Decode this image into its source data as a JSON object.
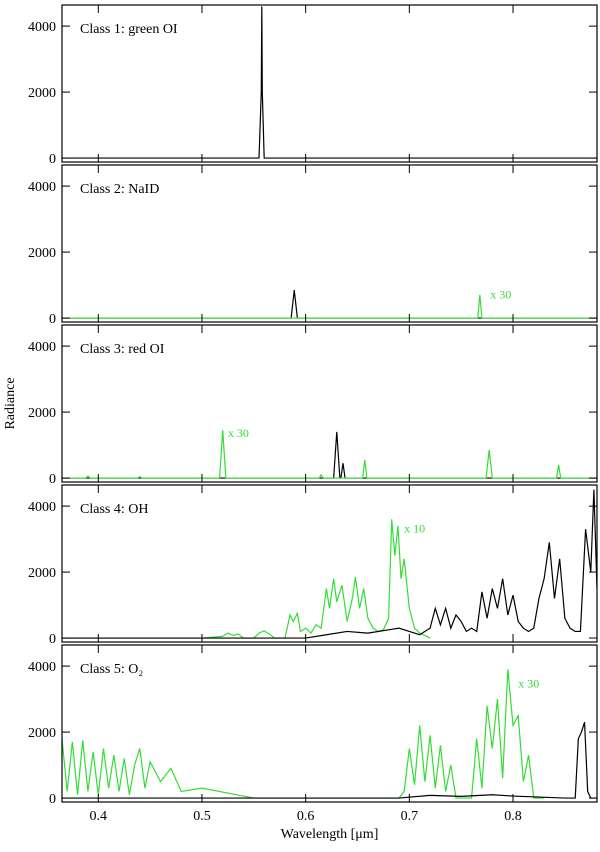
{
  "chart_data": [
    {
      "type": "line",
      "label": "Class 1: green OI",
      "xlim": [
        0.365,
        0.881
      ],
      "ylim": [
        -120,
        4640
      ],
      "yticks": [
        0,
        2000,
        4000
      ],
      "xticks": [
        0.4,
        0.5,
        0.6,
        0.7,
        0.8
      ],
      "series": [
        {
          "color": "#000000",
          "x": [
            0.365,
            0.555,
            0.5572,
            0.5577,
            0.5582,
            0.56,
            0.881
          ],
          "values": [
            0,
            0,
            2000,
            4600,
            2000,
            0,
            0
          ]
        }
      ]
    },
    {
      "type": "line",
      "label": "Class 2: NaID",
      "xlim": [
        0.365,
        0.881
      ],
      "ylim": [
        -120,
        4640
      ],
      "yticks": [
        0,
        2000,
        4000
      ],
      "xticks": [
        0.4,
        0.5,
        0.6,
        0.7,
        0.8
      ],
      "annotation": {
        "text": "x 30",
        "x": 0.778,
        "y": 600
      },
      "series": [
        {
          "color": "#000000",
          "x": [
            0.365,
            0.586,
            0.589,
            0.592,
            0.881
          ],
          "values": [
            0,
            0,
            850,
            0,
            0
          ]
        },
        {
          "color": "#33dd33",
          "x": [
            0.365,
            0.766,
            0.768,
            0.77,
            0.881
          ],
          "values": [
            0,
            0,
            700,
            0,
            0
          ]
        }
      ]
    },
    {
      "type": "line",
      "label": "Class 3: red OI",
      "y_label": "Radiance",
      "xlim": [
        0.365,
        0.881
      ],
      "ylim": [
        -120,
        4640
      ],
      "yticks": [
        0,
        2000,
        4000
      ],
      "xticks": [
        0.4,
        0.5,
        0.6,
        0.7,
        0.8
      ],
      "annotation": {
        "text": "x 30",
        "x": 0.525,
        "y": 1250
      },
      "series": [
        {
          "color": "#000000",
          "x": [
            0.365,
            0.627,
            0.63,
            0.633,
            0.634,
            0.636,
            0.638,
            0.881
          ],
          "values": [
            0,
            0,
            1400,
            0,
            0,
            450,
            0,
            0
          ]
        },
        {
          "color": "#33dd33",
          "x": [
            0.365,
            0.388,
            0.39,
            0.392,
            0.438,
            0.44,
            0.442,
            0.517,
            0.52,
            0.523,
            0.613,
            0.615,
            0.617,
            0.655,
            0.657,
            0.659,
            0.774,
            0.777,
            0.78,
            0.842,
            0.844,
            0.846,
            0.881
          ],
          "values": [
            0,
            0,
            60,
            0,
            0,
            40,
            0,
            0,
            1450,
            0,
            0,
            100,
            0,
            0,
            550,
            0,
            0,
            850,
            0,
            0,
            400,
            0,
            0
          ]
        }
      ]
    },
    {
      "type": "line",
      "label": "Class 4: OH",
      "xlim": [
        0.365,
        0.881
      ],
      "ylim": [
        -120,
        4640
      ],
      "yticks": [
        0,
        2000,
        4000
      ],
      "xticks": [
        0.4,
        0.5,
        0.6,
        0.7,
        0.8
      ],
      "annotation": {
        "text": "x 10",
        "x": 0.695,
        "y": 3200
      },
      "series": [
        {
          "color": "#33dd33",
          "x": [
            0.365,
            0.5,
            0.52,
            0.525,
            0.53,
            0.535,
            0.54,
            0.55,
            0.555,
            0.56,
            0.565,
            0.57,
            0.58,
            0.585,
            0.588,
            0.592,
            0.595,
            0.6,
            0.605,
            0.61,
            0.615,
            0.62,
            0.623,
            0.627,
            0.63,
            0.635,
            0.64,
            0.645,
            0.648,
            0.652,
            0.656,
            0.66,
            0.665,
            0.67,
            0.675,
            0.68,
            0.683,
            0.686,
            0.689,
            0.692,
            0.695,
            0.7,
            0.705,
            0.71,
            0.72
          ],
          "values": [
            0,
            0,
            50,
            150,
            80,
            120,
            0,
            0,
            150,
            220,
            120,
            0,
            0,
            700,
            500,
            750,
            200,
            300,
            150,
            400,
            300,
            1500,
            900,
            1800,
            1100,
            1600,
            500,
            1200,
            1850,
            900,
            1500,
            600,
            300,
            200,
            250,
            600,
            3600,
            2500,
            3400,
            1800,
            2400,
            900,
            300,
            150,
            0
          ]
        },
        {
          "color": "#000000",
          "x": [
            0.365,
            0.6,
            0.62,
            0.64,
            0.66,
            0.68,
            0.69,
            0.7,
            0.71,
            0.72,
            0.725,
            0.73,
            0.735,
            0.74,
            0.745,
            0.75,
            0.755,
            0.76,
            0.765,
            0.77,
            0.775,
            0.78,
            0.785,
            0.79,
            0.795,
            0.8,
            0.805,
            0.81,
            0.815,
            0.82,
            0.825,
            0.83,
            0.835,
            0.84,
            0.845,
            0.85,
            0.855,
            0.86,
            0.865,
            0.87,
            0.875,
            0.878,
            0.881
          ],
          "values": [
            0,
            0,
            100,
            200,
            150,
            250,
            300,
            200,
            100,
            300,
            900,
            400,
            900,
            300,
            700,
            500,
            200,
            300,
            200,
            1400,
            600,
            1500,
            900,
            1800,
            700,
            1300,
            500,
            300,
            200,
            300,
            1200,
            1800,
            2900,
            1200,
            2400,
            600,
            300,
            200,
            200,
            3300,
            2000,
            4500,
            1500
          ]
        }
      ]
    },
    {
      "type": "line",
      "label": "Class 5: O₂",
      "x_label": "Wavelength [μm]",
      "xlim": [
        0.365,
        0.881
      ],
      "ylim": [
        -120,
        4640
      ],
      "yticks": [
        0,
        2000,
        4000
      ],
      "xticks": [
        0.4,
        0.5,
        0.6,
        0.7,
        0.8
      ],
      "annotation": {
        "text": "x 30",
        "x": 0.805,
        "y": 3350
      },
      "series": [
        {
          "color": "#33dd33",
          "x": [
            0.365,
            0.37,
            0.375,
            0.38,
            0.385,
            0.39,
            0.395,
            0.4,
            0.405,
            0.41,
            0.415,
            0.42,
            0.425,
            0.43,
            0.435,
            0.44,
            0.445,
            0.45,
            0.46,
            0.47,
            0.48,
            0.5,
            0.55,
            0.69,
            0.695,
            0.7,
            0.705,
            0.71,
            0.715,
            0.72,
            0.725,
            0.73,
            0.735,
            0.74,
            0.745,
            0.76,
            0.765,
            0.77,
            0.775,
            0.78,
            0.785,
            0.79,
            0.795,
            0.8,
            0.805,
            0.81,
            0.815,
            0.82,
            0.83
          ],
          "values": [
            1800,
            200,
            1700,
            100,
            1750,
            200,
            1400,
            100,
            1500,
            300,
            1300,
            200,
            1200,
            100,
            1000,
            1500,
            300,
            1100,
            500,
            900,
            200,
            300,
            0,
            0,
            200,
            1500,
            400,
            2200,
            500,
            1900,
            300,
            1600,
            200,
            1000,
            0,
            0,
            1800,
            300,
            2800,
            1500,
            3000,
            600,
            3900,
            2200,
            2500,
            500,
            1300,
            0,
            0
          ]
        },
        {
          "color": "#000000",
          "x": [
            0.365,
            0.69,
            0.72,
            0.75,
            0.78,
            0.8,
            0.85,
            0.86,
            0.863,
            0.866,
            0.869,
            0.872,
            0.875,
            0.881
          ],
          "values": [
            0,
            0,
            80,
            50,
            100,
            60,
            0,
            0,
            1800,
            2000,
            2300,
            200,
            0,
            0
          ]
        }
      ]
    }
  ]
}
